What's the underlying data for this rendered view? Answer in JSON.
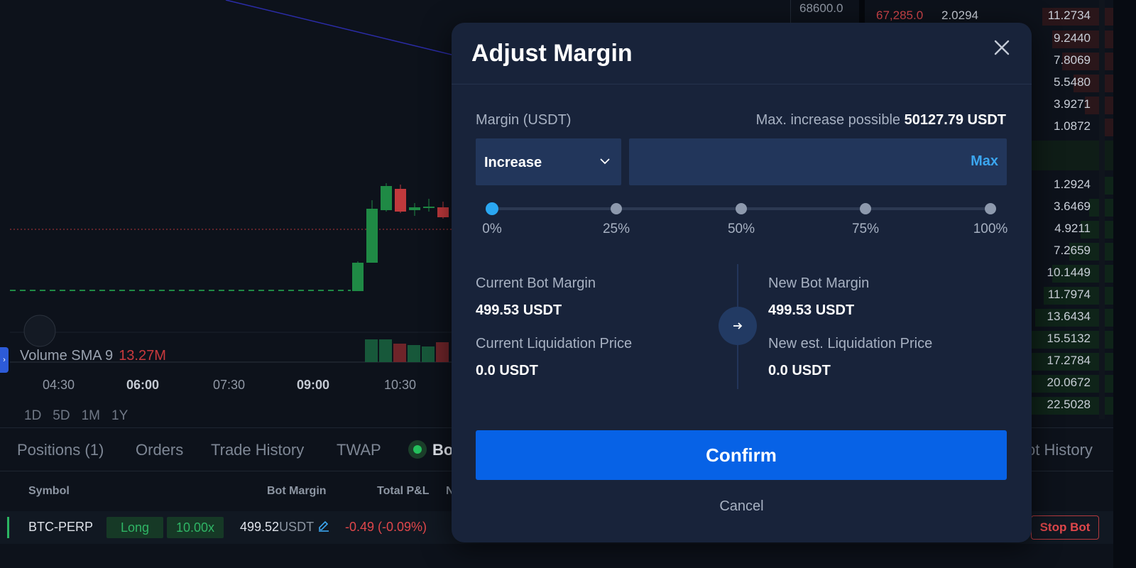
{
  "chart": {
    "volume_label": "Volume SMA 9",
    "volume_value": "13.27M",
    "time_ticks": [
      {
        "label": "04:30",
        "bold": false
      },
      {
        "label": "06:00",
        "bold": true
      },
      {
        "label": "07:30",
        "bold": false
      },
      {
        "label": "09:00",
        "bold": true
      },
      {
        "label": "10:30",
        "bold": false
      }
    ],
    "ranges": [
      "1D",
      "5D",
      "1M",
      "1Y"
    ],
    "price_axis_label": "68600.0"
  },
  "orderbook": {
    "top_ask": {
      "price": "67,285.0",
      "size": "2.0294",
      "total": "11.2734"
    },
    "asks_totals": [
      "9.2440",
      "7.8069",
      "5.5480",
      "3.9271",
      "1.0872"
    ],
    "bids_totals": [
      "1.2924",
      "3.6469",
      "4.9211",
      "7.2659",
      "10.1449",
      "11.7974",
      "13.6434",
      "15.5132",
      "17.2784",
      "20.0672",
      "22.5028"
    ]
  },
  "positions_panel": {
    "tabs": [
      "Positions (1)",
      "Orders",
      "Trade History",
      "TWAP",
      "Bo",
      "ot History"
    ],
    "headers": [
      "Symbol",
      "Bot Margin",
      "Total P&L",
      "N"
    ],
    "row": {
      "symbol": "BTC-PERP",
      "side": "Long",
      "leverage": "10.00x",
      "bot_margin": "499.52",
      "bot_margin_unit": "USDT",
      "total_pnl": "-0.49 (-0.09%)",
      "stop_label": "Stop Bot"
    }
  },
  "modal": {
    "title": "Adjust Margin",
    "margin_label": "Margin (USDT)",
    "max_increase_label": "Max. increase possible",
    "max_increase_value": "50127.79 USDT",
    "mode_selected": "Increase",
    "amount_value": "",
    "max_button": "Max",
    "slider_marks": [
      "0%",
      "25%",
      "50%",
      "75%",
      "100%"
    ],
    "slider_value": 0,
    "current_margin_label": "Current Bot Margin",
    "current_margin_value": "499.53 USDT",
    "current_liq_label": "Current Liquidation Price",
    "current_liq_value": "0.0 USDT",
    "new_margin_label": "New Bot Margin",
    "new_margin_value": "499.53 USDT",
    "new_liq_label": "New est. Liquidation Price",
    "new_liq_value": "0.0 USDT",
    "confirm_label": "Confirm",
    "cancel_label": "Cancel"
  },
  "colors": {
    "accent": "#0762e6",
    "modal_bg": "#18233a",
    "slider_active": "#2aa7f2",
    "up": "#1f8a45",
    "down": "#c0393c"
  }
}
